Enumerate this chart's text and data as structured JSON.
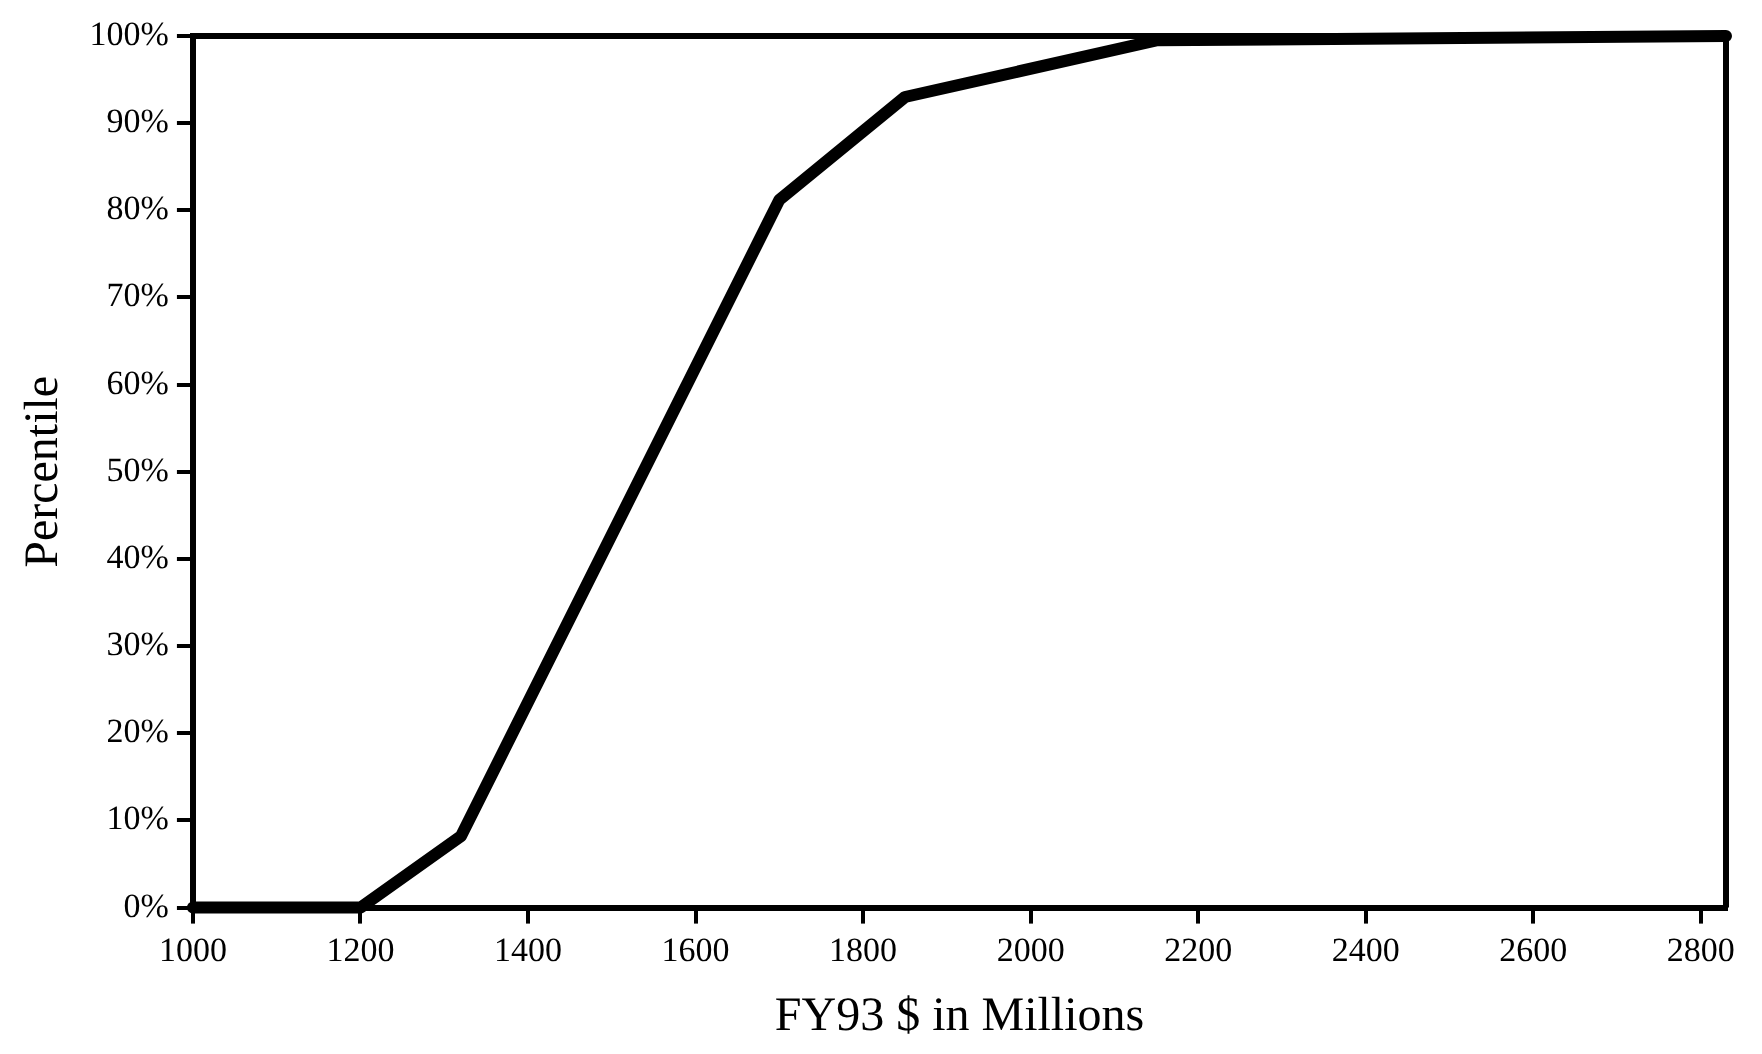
{
  "chart_data": {
    "type": "line",
    "xlabel": "FY93 $ in Millions",
    "ylabel": "Percentile",
    "x": [
      1000,
      1200,
      1320,
      1700,
      1850,
      2150,
      2830
    ],
    "series": [
      {
        "color": "#000000",
        "values": [
          0,
          0,
          8.2,
          81.2,
          93,
          99.5,
          100
        ]
      }
    ],
    "xlim": [
      1000,
      2830
    ],
    "xticks": [
      1000,
      1200,
      1400,
      1600,
      1800,
      2000,
      2200,
      2400,
      2600,
      2800
    ],
    "ylim": [
      0,
      100
    ],
    "yticks": [
      {
        "value": 0,
        "label": "0%"
      },
      {
        "value": 10,
        "label": "10%"
      },
      {
        "value": 20,
        "label": "20%"
      },
      {
        "value": 30,
        "label": "30%"
      },
      {
        "value": 40,
        "label": "40%"
      },
      {
        "value": 50,
        "label": "50%"
      },
      {
        "value": 60,
        "label": "60%"
      },
      {
        "value": 70,
        "label": "70%"
      },
      {
        "value": 80,
        "label": "80%"
      },
      {
        "value": 90,
        "label": "90%"
      },
      {
        "value": 100,
        "label": "100%"
      }
    ],
    "grid": false,
    "legend": false,
    "marker": "none",
    "line_style": "solid"
  }
}
